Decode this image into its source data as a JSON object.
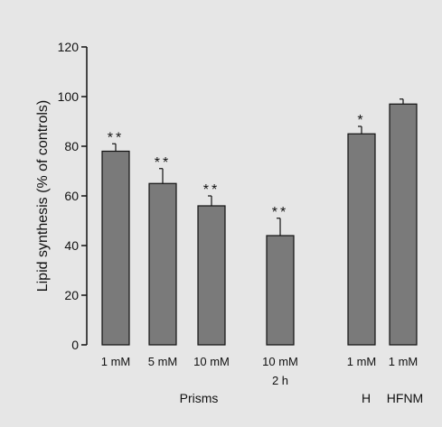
{
  "chart_data": {
    "type": "bar",
    "ylabel": "Lipid synthesis (% of controls)",
    "ylim": [
      0,
      120
    ],
    "yticks": [
      "0",
      "20",
      "40",
      "60",
      "80",
      "100",
      "120"
    ],
    "categories": [
      {
        "line1": "1 mM",
        "line2": ""
      },
      {
        "line1": "5 mM",
        "line2": ""
      },
      {
        "line1": "10 mM",
        "line2": ""
      },
      {
        "line1": "10 mM",
        "line2": "2 h"
      },
      {
        "line1": "1 mM",
        "line2": ""
      },
      {
        "line1": "1 mM",
        "line2": ""
      }
    ],
    "values": [
      78,
      65,
      56,
      44,
      85,
      97
    ],
    "errors": [
      3,
      6,
      4,
      7,
      3,
      2
    ],
    "significance": [
      "**",
      "**",
      "**",
      "**",
      "*",
      ""
    ],
    "groups": [
      {
        "label": "Prisms",
        "members": [
          0,
          1,
          2,
          3
        ]
      },
      {
        "label": "H",
        "members": [
          4
        ]
      },
      {
        "label": "HFNM",
        "members": [
          5
        ]
      }
    ],
    "bar_color": "#7a7a7a",
    "background_color": "#e6e6e6"
  }
}
